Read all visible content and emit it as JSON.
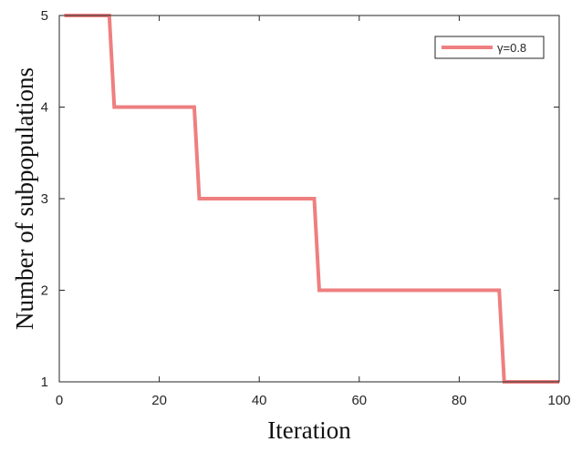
{
  "chart_data": {
    "type": "line",
    "title": "",
    "xlabel": "Iteration",
    "ylabel": "Number of subpopulations",
    "xlim": [
      0,
      100
    ],
    "ylim": [
      1,
      5
    ],
    "xticks": [
      0,
      20,
      40,
      60,
      80,
      100
    ],
    "yticks": [
      1,
      2,
      3,
      4,
      5
    ],
    "grid": false,
    "legend_position": "top-right",
    "series": [
      {
        "name": "γ=0.8",
        "color": "#ef7f7f",
        "x": [
          1,
          10,
          11,
          27,
          28,
          51,
          52,
          88,
          89,
          100
        ],
        "y": [
          5,
          5,
          4,
          4,
          3,
          3,
          2,
          2,
          1,
          1
        ]
      }
    ]
  }
}
